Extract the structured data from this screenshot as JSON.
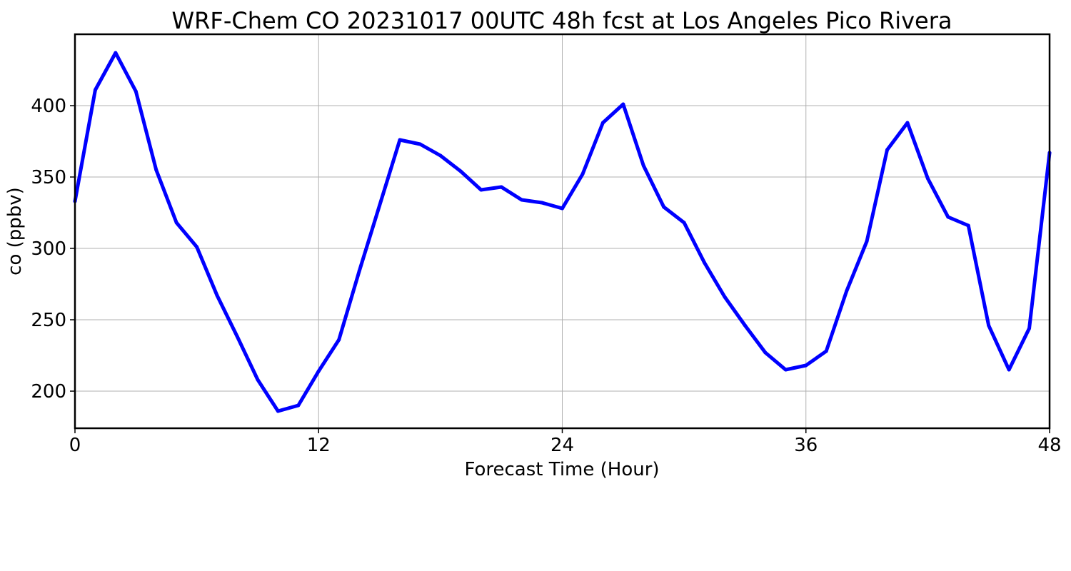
{
  "chart_data": {
    "type": "line",
    "title": "WRF-Chem CO  20231017 00UTC 48h fcst at Los Angeles Pico Rivera",
    "xlabel": "Forecast Time (Hour)",
    "ylabel": "co  (ppbv)",
    "xlim": [
      0,
      48
    ],
    "ylim": [
      174,
      450
    ],
    "xticks": [
      0,
      12,
      24,
      36,
      48
    ],
    "yticks": [
      200,
      250,
      300,
      350,
      400
    ],
    "grid": true,
    "legend": "none",
    "x": [
      0,
      1,
      2,
      3,
      4,
      5,
      6,
      7,
      8,
      9,
      10,
      11,
      12,
      13,
      14,
      15,
      16,
      17,
      18,
      19,
      20,
      21,
      22,
      23,
      24,
      25,
      26,
      27,
      28,
      29,
      30,
      31,
      32,
      33,
      34,
      35,
      36,
      37,
      38,
      39,
      40,
      41,
      42,
      43,
      44,
      45,
      46,
      47,
      48
    ],
    "series": [
      {
        "color": "#0000ff",
        "values": [
          333,
          411,
          437,
          410,
          355,
          318,
          301,
          267,
          238,
          208,
          186,
          190,
          214,
          236,
          284,
          330,
          376,
          373,
          365,
          354,
          341,
          343,
          334,
          332,
          328,
          352,
          388,
          401,
          358,
          329,
          318,
          290,
          266,
          246,
          227,
          215,
          218,
          228,
          270,
          305,
          369,
          388,
          349,
          322,
          316,
          246,
          215,
          244,
          367
        ]
      }
    ]
  }
}
